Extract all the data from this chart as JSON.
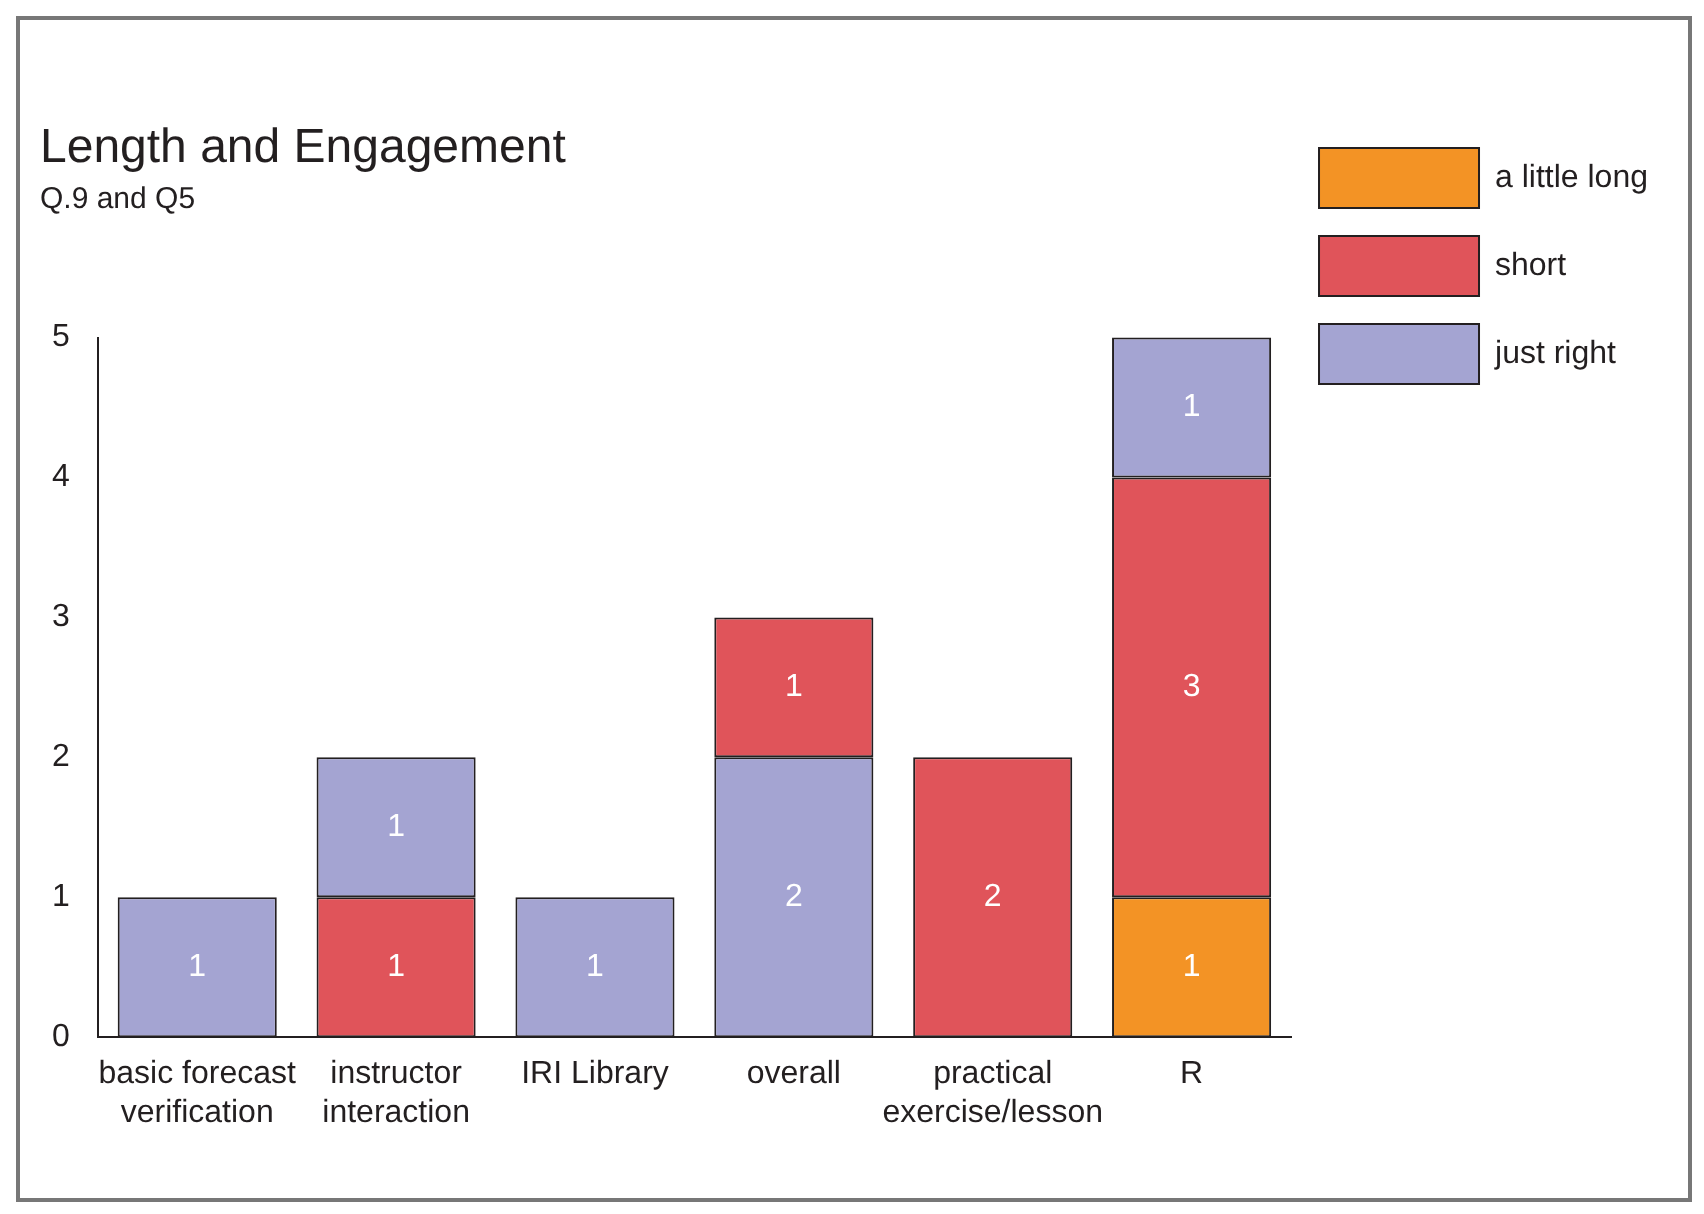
{
  "chart_data": {
    "type": "bar",
    "title": "Length and Engagement",
    "subtitle": "Q.9 and Q5",
    "categories": [
      "basic forecast verification",
      "instructor interaction",
      "IRI Library",
      "overall",
      "practical exercise/lesson",
      "R"
    ],
    "stacked": true,
    "series": [
      {
        "name": "a little long",
        "color": "#f39325",
        "values": [
          null,
          null,
          null,
          null,
          null,
          1
        ]
      },
      {
        "name": "short",
        "color": "#e0545a",
        "values": [
          null,
          1,
          null,
          null,
          2,
          3
        ]
      },
      {
        "name": "just right",
        "color": "#a4a4d2",
        "values": [
          1,
          1,
          1,
          2,
          null,
          1
        ]
      },
      {
        "color": "#e0545a",
        "values": [
          null,
          null,
          null,
          1,
          null,
          null
        ]
      }
    ],
    "ylim": [
      0,
      5
    ],
    "yticks": [
      0,
      1,
      2,
      3,
      4,
      5
    ],
    "grid": false,
    "legend": "top right",
    "data_labels": true
  }
}
